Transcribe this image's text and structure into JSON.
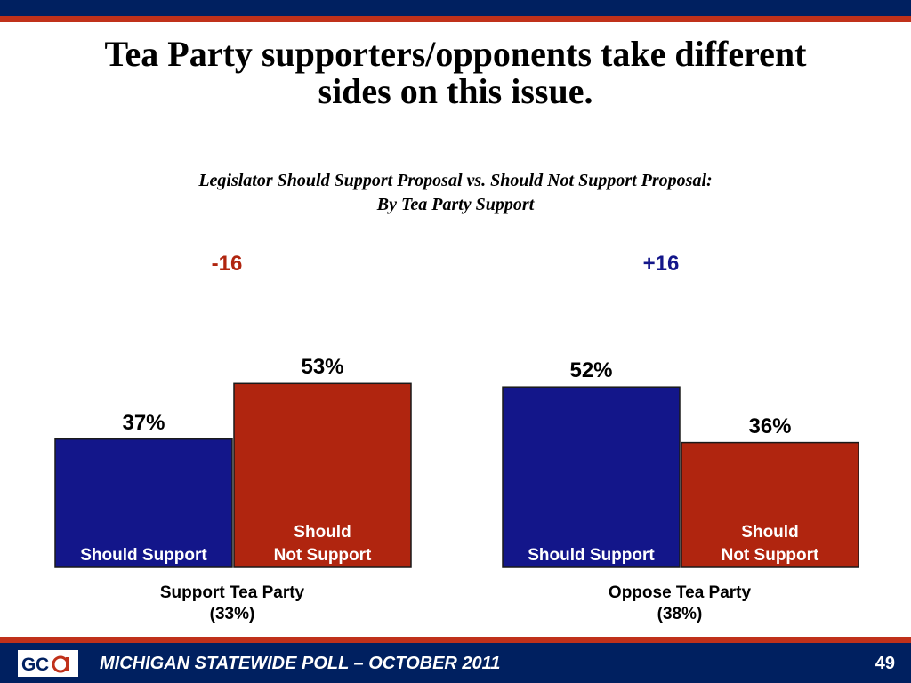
{
  "slide": {
    "title_line1": "Tea Party supporters/opponents take different",
    "title_line2": "sides on this issue.",
    "subtitle_line1": "Legislator Should Support Proposal vs. Should Not Support Proposal:",
    "subtitle_line2": "By Tea Party Support",
    "footer_text": "MICHIGAN STATEWIDE POLL – OCTOBER 2011",
    "page_number": "49",
    "logo_text": "GCA"
  },
  "colors": {
    "support": "#13168a",
    "not_support": "#b0250f",
    "negative_diff": "#b0250f",
    "positive_diff": "#13168a",
    "header_navy": "#002060",
    "header_red": "#c0311a"
  },
  "chart_data": {
    "type": "bar",
    "title": "Legislator Should Support Proposal vs. Should Not Support Proposal: By Tea Party Support",
    "ylim": [
      0,
      100
    ],
    "groups": [
      {
        "name": "Support Tea Party",
        "share": "(33%)",
        "difference": "-16",
        "bars": [
          {
            "label": "Should Support",
            "label_line1": "Should Support",
            "label_line2": "",
            "value": 37,
            "value_label": "37%"
          },
          {
            "label": "Should Not Support",
            "label_line1": "Should",
            "label_line2": "Not Support",
            "value": 53,
            "value_label": "53%"
          }
        ]
      },
      {
        "name": "Oppose Tea Party",
        "share": "(38%)",
        "difference": "+16",
        "bars": [
          {
            "label": "Should Support",
            "label_line1": "Should Support",
            "label_line2": "",
            "value": 52,
            "value_label": "52%"
          },
          {
            "label": "Should Not Support",
            "label_line1": "Should",
            "label_line2": "Not Support",
            "value": 36,
            "value_label": "36%"
          }
        ]
      }
    ]
  }
}
